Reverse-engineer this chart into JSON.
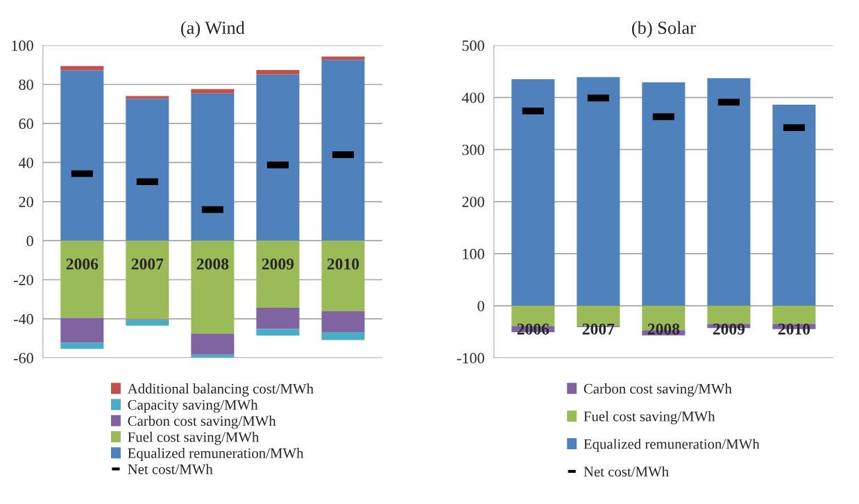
{
  "chart_data": [
    {
      "type": "bar",
      "title": "(a) Wind",
      "stacked": true,
      "categories": [
        "2006",
        "2007",
        "2008",
        "2009",
        "2010"
      ],
      "ylim": [
        -60,
        100
      ],
      "yticks": [
        -60,
        -40,
        -20,
        0,
        20,
        40,
        60,
        80,
        100
      ],
      "grid": "y",
      "legend": "bottom",
      "series": [
        {
          "name": "Equalized remuneration/MWh",
          "color": "#4f81bd",
          "values": [
            87.2,
            72.6,
            75.4,
            85.1,
            92.6
          ]
        },
        {
          "name": "Fuel cost saving/MWh",
          "color": "#9bbb59",
          "values": [
            -39.5,
            -40.2,
            -47.6,
            -34.4,
            -36.1
          ]
        },
        {
          "name": "Carbon cost saving/MWh",
          "color": "#8064a2",
          "values": [
            -12.7,
            -0.5,
            -10.8,
            -10.8,
            -10.7
          ]
        },
        {
          "name": "Capacity saving/MWh",
          "color": "#4bacc6",
          "values": [
            -3.2,
            -2.8,
            -1.5,
            -3.4,
            -4.1
          ]
        },
        {
          "name": "Additional balancing cost/MWh",
          "color": "#c0504d",
          "values": [
            2.2,
            1.5,
            2.2,
            2.3,
            1.7
          ]
        },
        {
          "name": "Net cost/MWh",
          "type": "scatter",
          "color": "#000000",
          "values": [
            34.3,
            30.2,
            15.9,
            38.8,
            44.0
          ]
        }
      ]
    },
    {
      "type": "bar",
      "title": "(b) Solar",
      "stacked": true,
      "categories": [
        "2006",
        "2007",
        "2008",
        "2009",
        "2010"
      ],
      "ylim": [
        -100,
        500
      ],
      "yticks": [
        -100,
        0,
        100,
        200,
        300,
        400,
        500
      ],
      "grid": "y",
      "legend": "bottom",
      "series": [
        {
          "name": "Equalized remuneration/MWh",
          "color": "#4f81bd",
          "values": [
            435,
            439,
            429,
            437,
            386
          ]
        },
        {
          "name": "Fuel cost saving/MWh",
          "color": "#9bbb59",
          "values": [
            -39,
            -39,
            -47,
            -35,
            -35
          ]
        },
        {
          "name": "Carbon cost saving/MWh",
          "color": "#8064a2",
          "values": [
            -12,
            -2,
            -10,
            -8,
            -10
          ]
        },
        {
          "name": "Net cost/MWh",
          "type": "scatter",
          "color": "#000000",
          "values": [
            374,
            399,
            363,
            391,
            342
          ]
        }
      ]
    }
  ]
}
